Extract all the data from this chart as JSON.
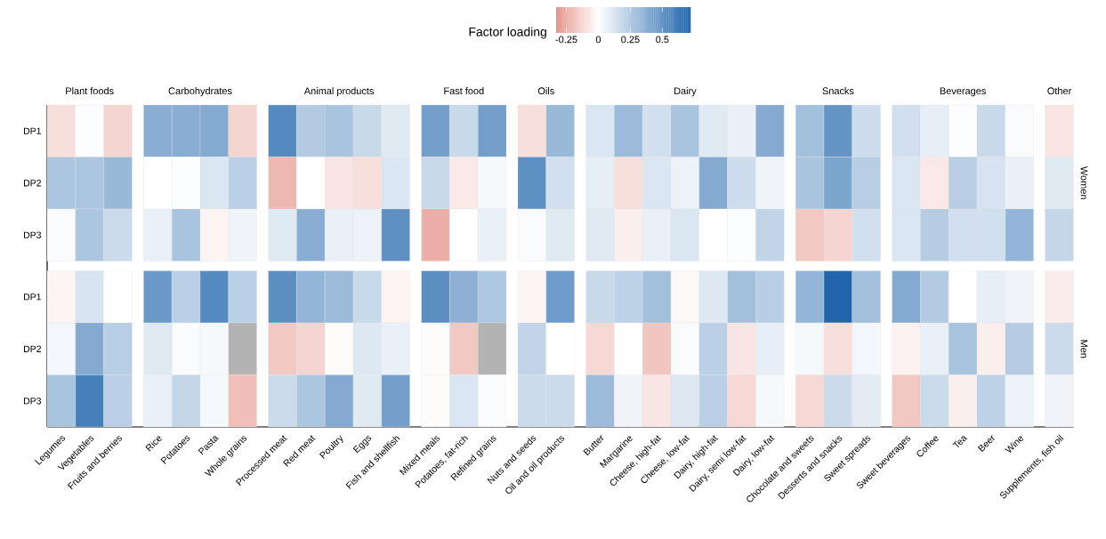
{
  "chart_data": {
    "type": "heatmap",
    "clabel": "Factor loading",
    "clim": [
      -0.33,
      0.72
    ],
    "cticks": [
      -0.25,
      0,
      0.25,
      0.5
    ],
    "annotations": [
      "Plant foods",
      "Carbohydrates",
      "Animal products",
      "Fast food",
      "Oils",
      "Dairy",
      "Snacks",
      "Beverages",
      "Other",
      "Women",
      "Men"
    ],
    "categories": [
      "Legumes",
      "Vegetables",
      "Fruits and berries",
      "Rice",
      "Potatoes",
      "Pasta",
      "Whole grains",
      "Processed meat",
      "Red meat",
      "Poultry",
      "Eggs",
      "Fish and shellfish",
      "Mixed meals",
      "Potatoes, fat-rich",
      "Refined grains",
      "Nuts and seeds",
      "Oil and oil products",
      "Butter",
      "Margarine",
      "Cheese, high-fat",
      "Cheese, low-fat",
      "Dairy, high-fat",
      "Dairy, semi low-fat",
      "Dairy, low-fat",
      "Chocolate and sweets",
      "Desserts and snacks",
      "Sweet spreads",
      "Sweet beverages",
      "Coffee",
      "Tea",
      "Beer",
      "Wine",
      "Supplements, fish oil"
    ],
    "y_categories": [
      "DP1",
      "DP2",
      "DP3",
      "DP1",
      "DP2",
      "DP3"
    ],
    "cells": [
      [
        -0.1,
        0.01,
        -0.13,
        0.38,
        0.38,
        0.4,
        -0.13,
        0.55,
        0.25,
        0.28,
        0.18,
        0.1,
        0.45,
        0.18,
        0.45,
        -0.1,
        0.33,
        0.12,
        0.32,
        0.15,
        0.28,
        0.1,
        0.07,
        0.4,
        0.3,
        0.5,
        0.16,
        0.15,
        0.08,
        0.01,
        0.18,
        0.02,
        -0.08
      ],
      [
        0.27,
        0.27,
        0.33,
        0.0,
        0.01,
        0.12,
        0.22,
        -0.22,
        0.0,
        -0.08,
        -0.1,
        0.12,
        0.18,
        -0.07,
        0.03,
        0.52,
        0.15,
        0.08,
        -0.1,
        0.12,
        0.06,
        0.4,
        0.16,
        0.05,
        0.28,
        0.42,
        0.23,
        0.12,
        -0.07,
        0.23,
        0.13,
        0.07,
        0.1
      ],
      [
        0.02,
        0.27,
        0.17,
        0.07,
        0.28,
        -0.03,
        0.05,
        0.1,
        0.38,
        0.07,
        0.06,
        0.52,
        -0.25,
        0.0,
        0.07,
        0.02,
        0.1,
        0.1,
        -0.05,
        0.07,
        0.12,
        0.0,
        0.01,
        0.2,
        -0.17,
        -0.13,
        0.15,
        0.12,
        0.24,
        0.15,
        0.15,
        0.35,
        0.19
      ],
      [
        -0.03,
        0.13,
        0.0,
        0.48,
        0.22,
        0.55,
        0.22,
        0.53,
        0.35,
        0.32,
        0.18,
        -0.03,
        0.53,
        0.37,
        0.26,
        -0.03,
        0.47,
        0.18,
        0.21,
        0.3,
        -0.02,
        0.11,
        0.3,
        0.23,
        0.35,
        0.72,
        0.3,
        0.4,
        0.25,
        0.0,
        0.08,
        0.05,
        -0.06
      ],
      [
        0.04,
        0.4,
        0.23,
        0.1,
        0.02,
        0.03,
        null,
        -0.17,
        -0.13,
        -0.01,
        0.11,
        0.07,
        -0.01,
        -0.17,
        null,
        0.2,
        0.0,
        -0.12,
        0.0,
        -0.18,
        0.02,
        0.22,
        -0.08,
        0.08,
        0.03,
        -0.1,
        0.04,
        -0.04,
        0.07,
        0.28,
        -0.05,
        0.24,
        0.17
      ],
      [
        0.28,
        0.6,
        0.22,
        0.07,
        0.19,
        0.03,
        -0.2,
        0.17,
        0.27,
        0.4,
        0.1,
        0.45,
        -0.01,
        0.12,
        0.02,
        0.17,
        0.17,
        0.32,
        0.05,
        -0.08,
        0.11,
        0.22,
        -0.12,
        0.03,
        -0.12,
        0.17,
        0.09,
        -0.17,
        0.17,
        -0.05,
        0.21,
        0.06,
        0.05
      ]
    ]
  }
}
